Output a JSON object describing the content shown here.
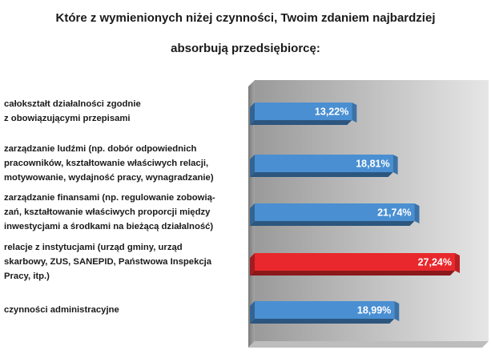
{
  "chart_data": {
    "type": "bar",
    "orientation": "horizontal",
    "title": "Które z wymienionych niżej czynności, Twoim zdaniem najbardziej\nabsorbują przedsiębiorcę:",
    "categories": [
      "całokształt działalności zgodnie\nz obowiązującymi przepisami",
      "zarządzanie ludźmi (np. dobór odpowiednich\npracowników, kształtowanie właściwych relacji,\nmotywowanie, wydajność pracy, wynagradzanie)",
      "zarządzanie finansami (np. regulowanie zobowią-\nzań, kształtowanie właściwych proporcji między\ninwestycjami a środkami na bieżącą działalność)",
      "relacje z instytucjami (urząd gminy, urząd\nskarbowy, ZUS, SANEPID, Państwowa Inspekcja\nPracy, itp.)",
      "czynności administracyjne"
    ],
    "values": [
      13.22,
      18.81,
      21.74,
      27.24,
      18.99
    ],
    "value_labels": [
      "13,22%",
      "18,81%",
      "21,74%",
      "27,24%",
      "18,99%"
    ],
    "colors": [
      "#4a8fd2",
      "#4a8fd2",
      "#4a8fd2",
      "#e8282c",
      "#4a8fd2"
    ]
  }
}
